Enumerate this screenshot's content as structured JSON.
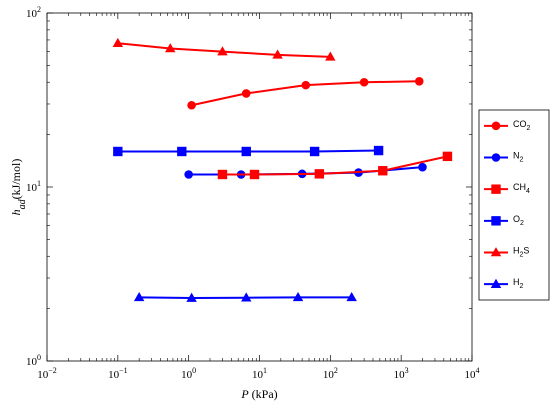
{
  "chart_data": {
    "type": "line",
    "xscale": "log",
    "yscale": "log",
    "xlim": [
      0.01,
      10000
    ],
    "ylim": [
      1,
      100
    ],
    "grid": false,
    "legend_position": "right",
    "title": "",
    "xlabel": {
      "main": "P",
      "unit": " (kPa)"
    },
    "ylabel": {
      "main": "h",
      "sub": "ad",
      "unit": "(kJ/mol)"
    },
    "x_ticks": [
      {
        "value": 0.01,
        "base": "10",
        "exp": "−2"
      },
      {
        "value": 0.1,
        "base": "10",
        "exp": "−1"
      },
      {
        "value": 1,
        "base": "10",
        "exp": "0"
      },
      {
        "value": 10,
        "base": "10",
        "exp": "1"
      },
      {
        "value": 100,
        "base": "10",
        "exp": "2"
      },
      {
        "value": 1000,
        "base": "10",
        "exp": "3"
      },
      {
        "value": 10000,
        "base": "10",
        "exp": "4"
      }
    ],
    "y_ticks": [
      {
        "value": 1,
        "base": "10",
        "exp": "0"
      },
      {
        "value": 10,
        "base": "10",
        "exp": "1"
      },
      {
        "value": 100,
        "base": "10",
        "exp": "2"
      }
    ],
    "series": [
      {
        "name": "CO",
        "sub": "2",
        "color": "#ff0000",
        "marker": "circle",
        "x": [
          1.1,
          6.5,
          45,
          300,
          1800
        ],
        "y": [
          29.5,
          34.5,
          38.5,
          40.0,
          40.5
        ]
      },
      {
        "name": "N",
        "sub": "2",
        "color": "#0000ff",
        "marker": "circle",
        "x": [
          1.0,
          5.5,
          40,
          250,
          2000
        ],
        "y": [
          11.8,
          11.8,
          11.9,
          12.1,
          13.0
        ]
      },
      {
        "name": "CH",
        "sub": "4",
        "color": "#ff0000",
        "marker": "square",
        "x": [
          3.0,
          8.5,
          70,
          550,
          4500
        ],
        "y": [
          11.8,
          11.8,
          11.9,
          12.4,
          15.0
        ]
      },
      {
        "name": "O",
        "sub": "2",
        "color": "#0000ff",
        "marker": "square",
        "x": [
          0.1,
          0.8,
          6.5,
          60,
          480
        ],
        "y": [
          16.0,
          16.0,
          16.0,
          16.0,
          16.2
        ]
      },
      {
        "name": "H",
        "sub": "2",
        "post": "S",
        "color": "#ff0000",
        "marker": "triangle",
        "x": [
          0.1,
          0.55,
          3.0,
          18,
          100
        ],
        "y": [
          67.0,
          62.5,
          60.0,
          57.5,
          56.0
        ]
      },
      {
        "name": "H",
        "sub": "2",
        "color": "#0000ff",
        "marker": "triangle",
        "x": [
          0.2,
          1.1,
          6.5,
          35,
          200
        ],
        "y": [
          2.32,
          2.3,
          2.31,
          2.32,
          2.32
        ]
      }
    ]
  }
}
